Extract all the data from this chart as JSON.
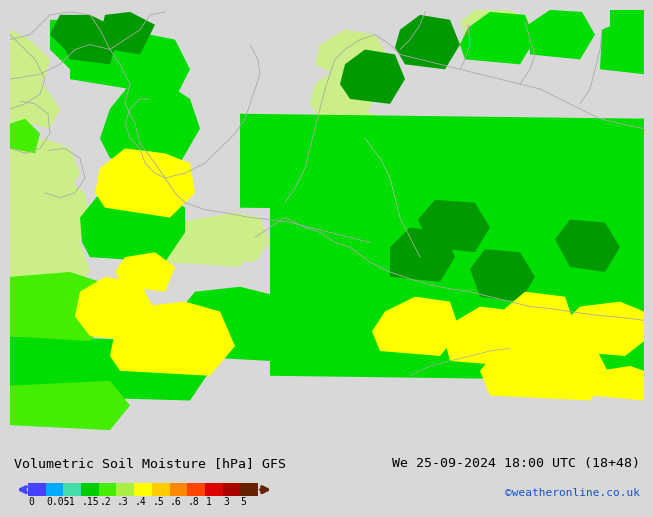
{
  "title_left": "Volumetric Soil Moisture [hPa] GFS",
  "title_right": "We 25-09-2024 18:00 UTC (18+48)",
  "credit": "©weatheronline.co.uk",
  "colorbar_labels": [
    "0",
    "0.05",
    ".1",
    ".15",
    ".2",
    ".3",
    ".4",
    ".5",
    ".6",
    ".8",
    "1",
    "3",
    "5"
  ],
  "colorbar_colors": [
    "#4444ff",
    "#00aaff",
    "#44ddaa",
    "#00cc00",
    "#44ee00",
    "#aaee44",
    "#ffff00",
    "#ffcc00",
    "#ff8800",
    "#ff4400",
    "#dd0000",
    "#aa0000",
    "#662200"
  ],
  "bg_color": "#d8d8d8",
  "sea_color": "#e8e8e8",
  "land_gray": "#cccccc",
  "coast_color": "#999999",
  "border_color": "#aaaaaa",
  "col_light_green": "#ccee88",
  "col_mid_green": "#44ee00",
  "col_bright_green": "#00dd00",
  "col_dark_green": "#009900",
  "col_darkest_green": "#006600",
  "col_yellow": "#ffff00",
  "col_orange": "#ff8800",
  "col_light_green2": "#bbee66",
  "title_fontsize": 9.5,
  "credit_color": "#1155cc",
  "credit_fontsize": 8,
  "label_fontsize": 7
}
